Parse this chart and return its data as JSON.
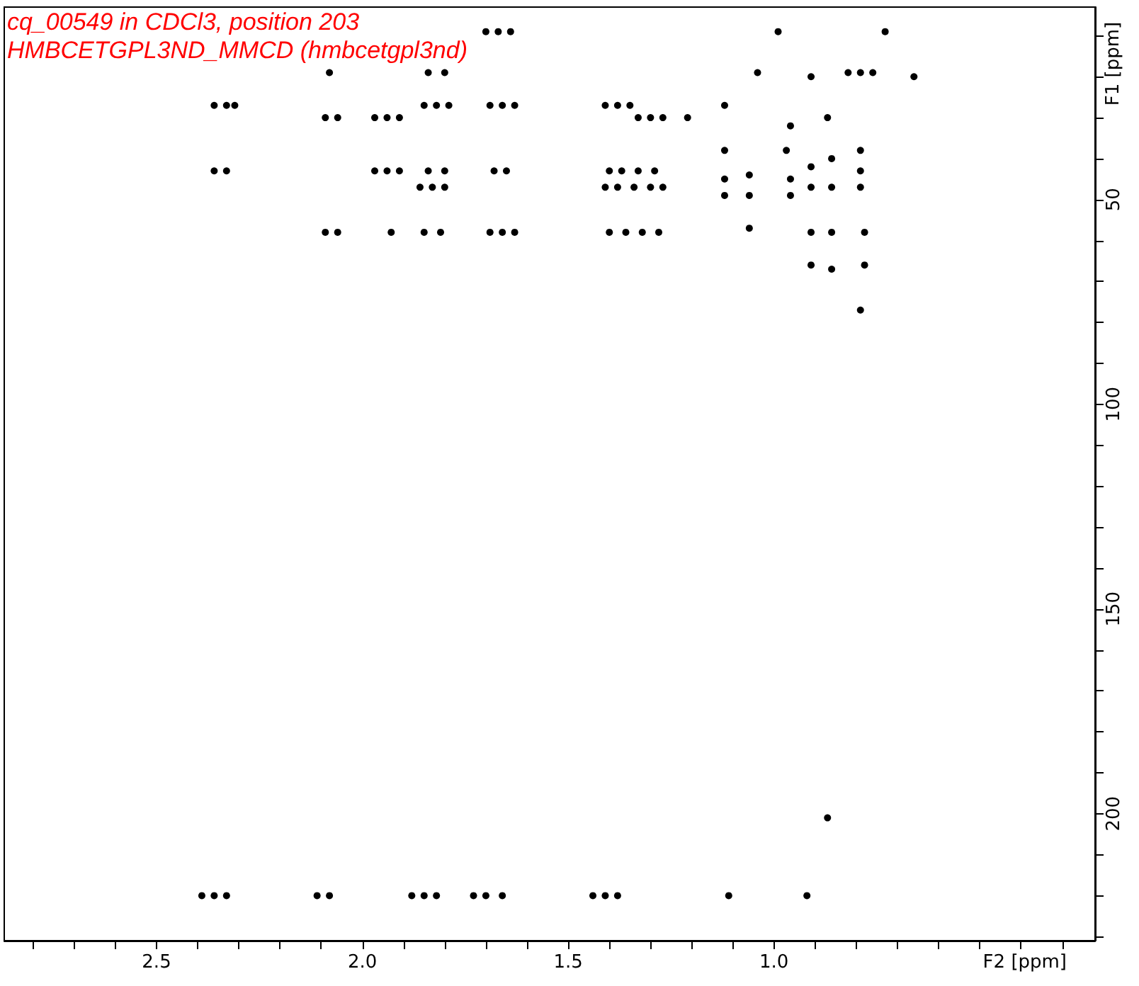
{
  "chart_data": {
    "type": "scatter",
    "title": "cq_00549 in CDCl3, position 203",
    "subtitle": "HMBCETGPL3ND_MMCD (hmbcetgpl3nd)",
    "xlabel": "F2 [ppm]",
    "ylabel": "F1 [ppm]",
    "color": "#000000",
    "marker": "circle",
    "x": [
      1.7,
      1.67,
      1.64,
      0.99,
      0.73,
      2.08,
      1.84,
      1.8,
      1.04,
      0.91,
      0.82,
      0.79,
      0.76,
      0.66,
      2.36,
      2.33,
      2.31,
      1.85,
      1.82,
      1.79,
      1.69,
      1.66,
      1.63,
      1.41,
      1.38,
      1.35,
      1.12,
      2.09,
      2.06,
      1.97,
      1.94,
      1.91,
      1.33,
      1.3,
      1.27,
      1.21,
      0.87,
      0.96,
      1.12,
      0.97,
      0.79,
      2.36,
      2.33,
      1.97,
      1.94,
      1.91,
      1.84,
      1.8,
      1.68,
      1.65,
      1.4,
      1.37,
      1.33,
      1.29,
      1.06,
      0.91,
      0.86,
      0.79,
      1.86,
      1.83,
      1.8,
      1.41,
      1.38,
      1.34,
      1.3,
      1.27,
      1.12,
      0.96,
      0.91,
      0.86,
      0.79,
      1.12,
      1.06,
      0.96,
      2.09,
      2.06,
      1.93,
      1.85,
      1.81,
      1.69,
      1.66,
      1.63,
      1.4,
      1.36,
      1.32,
      1.28,
      1.06,
      0.91,
      0.86,
      0.78,
      0.91,
      0.86,
      0.78,
      0.79,
      0.87,
      2.39,
      2.36,
      2.33,
      2.11,
      2.08,
      1.88,
      1.85,
      1.82,
      1.73,
      1.7,
      1.66,
      1.44,
      1.41,
      1.38,
      1.11,
      0.92
    ],
    "values": [
      9,
      9,
      9,
      9,
      9,
      19,
      19,
      19,
      19,
      20,
      19,
      19,
      19,
      20,
      27,
      27,
      27,
      27,
      27,
      27,
      27,
      27,
      27,
      27,
      27,
      27,
      27,
      30,
      30,
      30,
      30,
      30,
      30,
      30,
      30,
      30,
      30,
      32,
      38,
      38,
      38,
      43,
      43,
      43,
      43,
      43,
      43,
      43,
      43,
      43,
      43,
      43,
      43,
      43,
      44,
      42,
      40,
      43,
      47,
      47,
      47,
      47,
      47,
      47,
      47,
      47,
      45,
      45,
      47,
      47,
      47,
      49,
      49,
      49,
      58,
      58,
      58,
      58,
      58,
      58,
      58,
      58,
      58,
      58,
      58,
      58,
      57,
      58,
      58,
      58,
      66,
      67,
      66,
      77,
      201,
      220,
      220,
      220,
      220,
      220,
      220,
      220,
      220,
      220,
      220,
      220,
      220,
      220,
      220,
      220,
      220
    ],
    "xlim": [
      2.87,
      0.22
    ],
    "xticks": [
      {
        "value": 2.8,
        "label": null
      },
      {
        "value": 2.7,
        "label": null
      },
      {
        "value": 2.6,
        "label": null
      },
      2.5,
      {
        "value": 2.4,
        "label": null
      },
      {
        "value": 2.3,
        "label": null
      },
      {
        "value": 2.2,
        "label": null
      },
      {
        "value": 2.1,
        "label": null
      },
      {
        "value": 2.0,
        "label": "2.0"
      },
      {
        "value": 1.9,
        "label": null
      },
      {
        "value": 1.8,
        "label": null
      },
      {
        "value": 1.7,
        "label": null
      },
      {
        "value": 1.6,
        "label": null
      },
      1.5,
      {
        "value": 1.4,
        "label": null
      },
      {
        "value": 1.3,
        "label": null
      },
      {
        "value": 1.2,
        "label": null
      },
      {
        "value": 1.1,
        "label": null
      },
      {
        "value": 1.0,
        "label": "1.0"
      },
      {
        "value": 0.9,
        "label": null
      },
      {
        "value": 0.8,
        "label": null
      },
      {
        "value": 0.7,
        "label": null
      },
      {
        "value": 0.6,
        "label": null
      },
      {
        "value": 0.5,
        "label": null
      },
      {
        "value": 0.4,
        "label": null
      },
      {
        "value": 0.3,
        "label": null
      }
    ],
    "ylim": [
      231,
      3
    ],
    "yticks": [
      {
        "value": 10,
        "label": null
      },
      {
        "value": 20,
        "label": null
      },
      {
        "value": 30,
        "label": null
      },
      {
        "value": 40,
        "label": null
      },
      50,
      {
        "value": 60,
        "label": null
      },
      {
        "value": 70,
        "label": null
      },
      {
        "value": 80,
        "label": null
      },
      {
        "value": 90,
        "label": null
      },
      100,
      {
        "value": 110,
        "label": null
      },
      {
        "value": 120,
        "label": null
      },
      {
        "value": 130,
        "label": null
      },
      {
        "value": 140,
        "label": null
      },
      150,
      {
        "value": 160,
        "label": null
      },
      {
        "value": 170,
        "label": null
      },
      {
        "value": 180,
        "label": null
      },
      {
        "value": 190,
        "label": null
      },
      200,
      {
        "value": 210,
        "label": null
      },
      {
        "value": 220,
        "label": null
      },
      {
        "value": 230,
        "label": null
      }
    ]
  }
}
